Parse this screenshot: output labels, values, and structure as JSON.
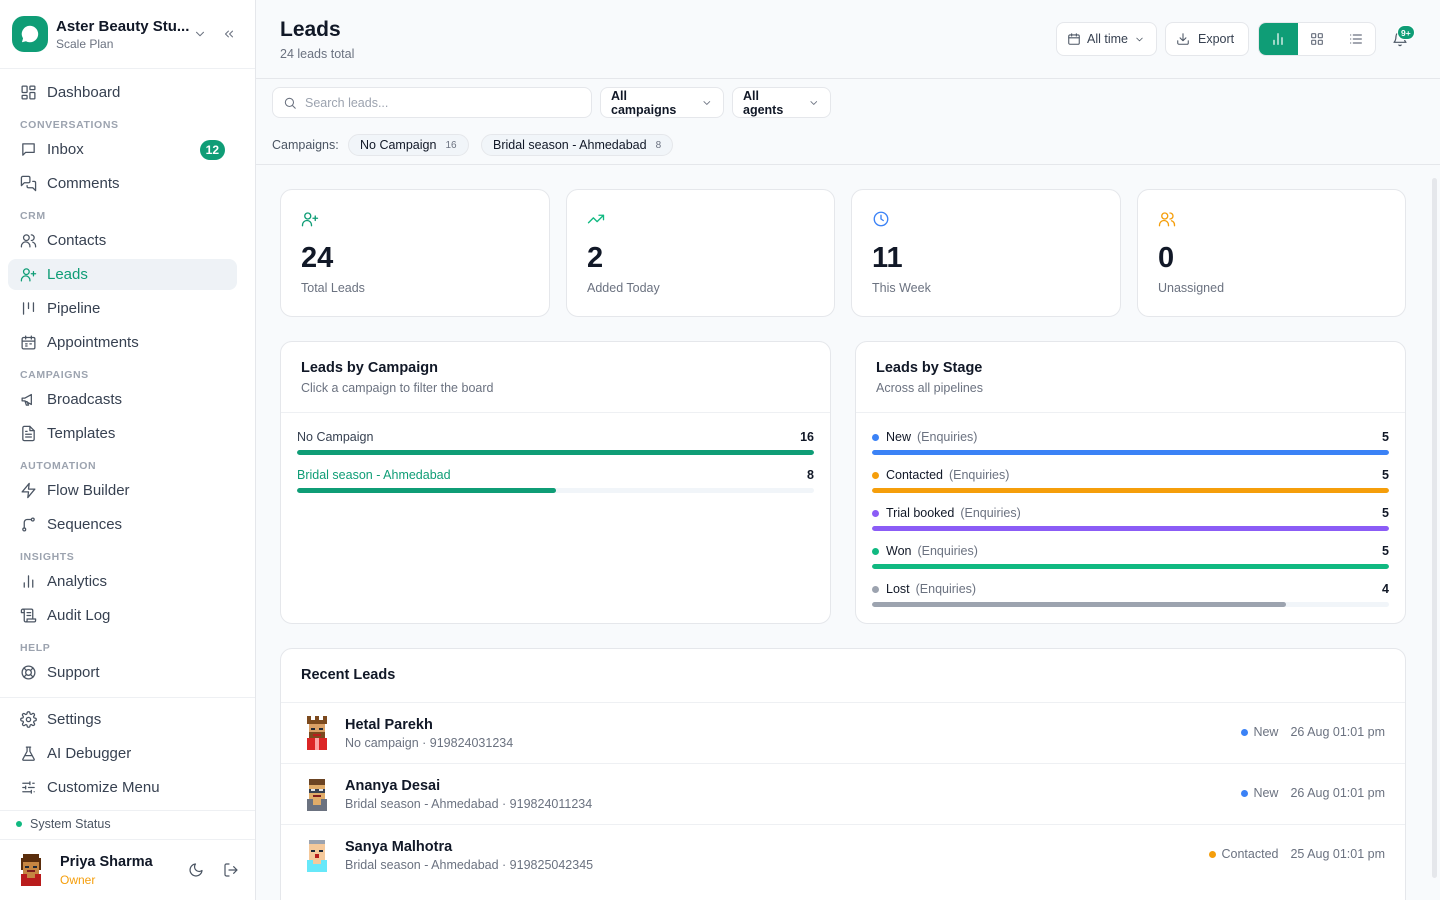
{
  "workspace": {
    "name": "Aster Beauty Stu...",
    "plan": "Scale Plan"
  },
  "nav": {
    "dashboard": "Dashboard",
    "conversations_section": "CONVERSATIONS",
    "inbox": "Inbox",
    "inbox_badge": "12",
    "comments": "Comments",
    "crm_section": "CRM",
    "contacts": "Contacts",
    "leads": "Leads",
    "pipeline": "Pipeline",
    "appointments": "Appointments",
    "campaigns_section": "CAMPAIGNS",
    "broadcasts": "Broadcasts",
    "templates": "Templates",
    "automation_section": "AUTOMATION",
    "flow_builder": "Flow Builder",
    "sequences": "Sequences",
    "insights_section": "INSIGHTS",
    "analytics": "Analytics",
    "audit_log": "Audit Log",
    "help_section": "HELP",
    "support": "Support",
    "settings": "Settings",
    "ai_debugger": "AI Debugger",
    "customize_menu": "Customize Menu",
    "system_status": "System Status"
  },
  "user": {
    "name": "Priya Sharma",
    "role": "Owner"
  },
  "header": {
    "title": "Leads",
    "subtitle": "24 leads total",
    "time_filter": "All time",
    "export": "Export",
    "notif_badge": "9+"
  },
  "filters": {
    "search_placeholder": "Search leads...",
    "campaign": "All campaigns",
    "agent": "All agents"
  },
  "campaign_bar": {
    "label": "Campaigns:",
    "chips": [
      {
        "name": "No Campaign",
        "count": "16"
      },
      {
        "name": "Bridal season - Ahmedabad",
        "count": "8"
      }
    ]
  },
  "stats": [
    {
      "value": "24",
      "label": "Total Leads",
      "color": "#0f9d76"
    },
    {
      "value": "2",
      "label": "Added Today",
      "color": "#10b981"
    },
    {
      "value": "11",
      "label": "This Week",
      "color": "#3b82f6"
    },
    {
      "value": "0",
      "label": "Unassigned",
      "color": "#f59e0b"
    }
  ],
  "campaign_panel": {
    "title": "Leads by Campaign",
    "subtitle": "Click a campaign to filter the board",
    "max": 16,
    "rows": [
      {
        "name": "No Campaign",
        "value": 16,
        "value_text": "16",
        "color": "#0f9d76",
        "label_color": "#374151"
      },
      {
        "name": "Bridal season - Ahmedabad",
        "value": 8,
        "value_text": "8",
        "color": "#0f9d76",
        "label_color": "#0f9d76"
      }
    ]
  },
  "stage_panel": {
    "title": "Leads by Stage",
    "subtitle": "Across all pipelines",
    "max": 5,
    "rows": [
      {
        "stage": "New",
        "pipeline": "(Enquiries)",
        "value": 5,
        "value_text": "5",
        "color": "#3b82f6"
      },
      {
        "stage": "Contacted",
        "pipeline": "(Enquiries)",
        "value": 5,
        "value_text": "5",
        "color": "#f59e0b"
      },
      {
        "stage": "Trial booked",
        "pipeline": "(Enquiries)",
        "value": 5,
        "value_text": "5",
        "color": "#8b5cf6"
      },
      {
        "stage": "Won",
        "pipeline": "(Enquiries)",
        "value": 5,
        "value_text": "5",
        "color": "#10b981"
      },
      {
        "stage": "Lost",
        "pipeline": "(Enquiries)",
        "value": 4,
        "value_text": "4",
        "color": "#9ca3af"
      }
    ]
  },
  "recent": {
    "title": "Recent Leads",
    "rows": [
      {
        "name": "Hetal Parekh",
        "meta": "No campaign · 919824031234",
        "status": "New",
        "status_color": "#3b82f6",
        "date": "26 Aug 01:01 pm"
      },
      {
        "name": "Ananya Desai",
        "meta": "Bridal season - Ahmedabad · 919824011234",
        "status": "New",
        "status_color": "#3b82f6",
        "date": "26 Aug 01:01 pm"
      },
      {
        "name": "Sanya Malhotra",
        "meta": "Bridal season - Ahmedabad · 919825042345",
        "status": "Contacted",
        "status_color": "#f59e0b",
        "date": "25 Aug 01:01 pm"
      }
    ]
  }
}
